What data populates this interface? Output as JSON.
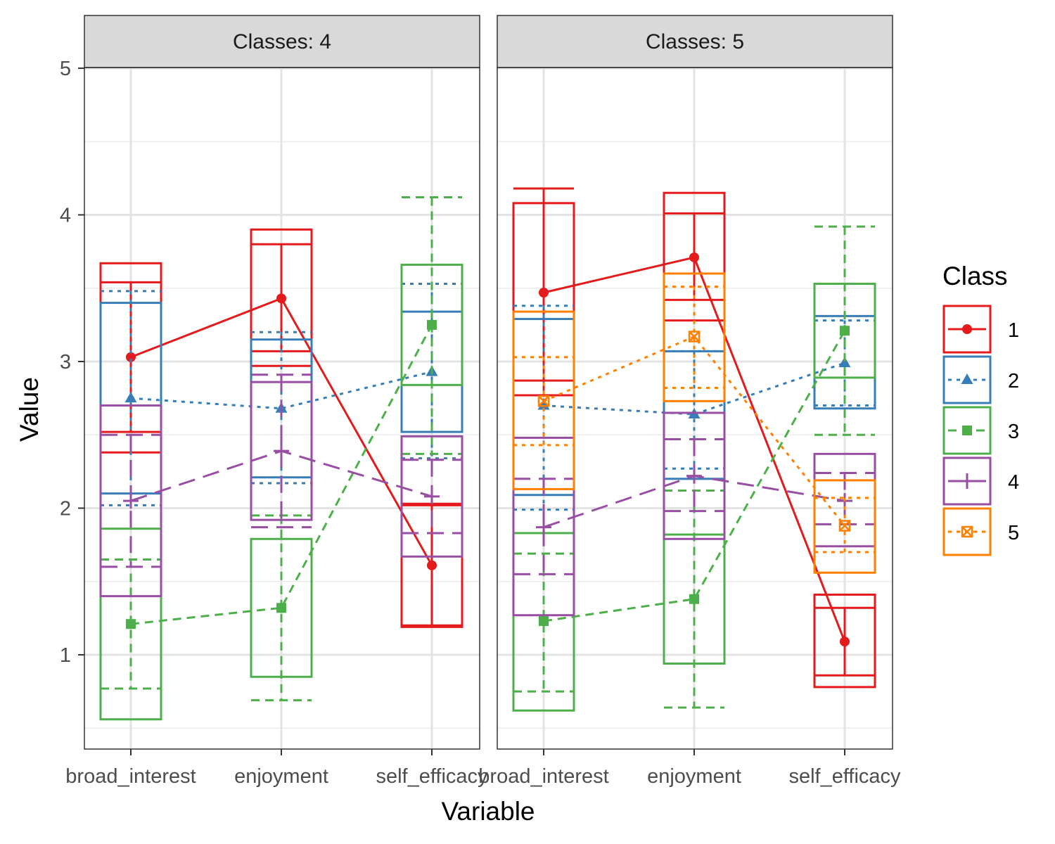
{
  "chart_data": {
    "type": "line",
    "facet_label_prefix": "Classes: ",
    "facets": [
      "4",
      "5"
    ],
    "xlabel": "Variable",
    "ylabel": "Value",
    "categories": [
      "broad_interest",
      "enjoyment",
      "self_efficacy"
    ],
    "y_ticks": [
      1,
      2,
      3,
      4,
      5
    ],
    "ylim": [
      0.43,
      5.05
    ],
    "grid": true,
    "legend": {
      "title": "Class",
      "position": "right",
      "items": [
        "1",
        "2",
        "3",
        "4",
        "5"
      ]
    },
    "classes": {
      "1": {
        "color": "#E41A1C",
        "linestyle": "solid",
        "marker": "circle"
      },
      "2": {
        "color": "#377EB8",
        "linestyle": "dotted",
        "marker": "triangle"
      },
      "3": {
        "color": "#4DAF4A",
        "linestyle": "dashed",
        "marker": "square"
      },
      "4": {
        "color": "#984EA3",
        "linestyle": "longdash",
        "marker": "plus"
      },
      "5": {
        "color": "#FF7F00",
        "linestyle": "dotted",
        "marker": "square-x"
      }
    },
    "panels": [
      {
        "facet": "4",
        "series": [
          {
            "class": "1",
            "means": [
              3.03,
              3.43,
              1.61
            ],
            "box_low": [
              2.38,
              2.97,
              1.19
            ],
            "box_high": [
              3.67,
              3.9,
              2.03
            ],
            "ci_low": [
              2.52,
              3.07,
              1.2
            ],
            "ci_high": [
              3.54,
              3.8,
              2.02
            ]
          },
          {
            "class": "2",
            "means": [
              2.75,
              2.68,
              2.93
            ],
            "box_low": [
              2.1,
              2.21,
              2.52
            ],
            "box_high": [
              3.4,
              3.15,
              3.34
            ],
            "ci_low": [
              2.02,
              2.17,
              2.34
            ],
            "ci_high": [
              3.48,
              3.2,
              3.53
            ]
          },
          {
            "class": "3",
            "means": [
              1.21,
              1.32,
              3.25
            ],
            "box_low": [
              0.56,
              0.85,
              2.84
            ],
            "box_high": [
              1.86,
              1.79,
              3.66
            ],
            "ci_low": [
              0.77,
              0.69,
              2.37
            ],
            "ci_high": [
              1.65,
              1.95,
              4.12
            ]
          },
          {
            "class": "4",
            "means": [
              2.05,
              2.39,
              2.08
            ],
            "box_low": [
              1.4,
              1.92,
              1.67
            ],
            "box_high": [
              2.7,
              2.86,
              2.49
            ],
            "ci_low": [
              1.6,
              1.87,
              1.83
            ],
            "ci_high": [
              2.5,
              2.91,
              2.33
            ]
          }
        ]
      },
      {
        "facet": "5",
        "series": [
          {
            "class": "1",
            "means": [
              3.47,
              3.71,
              1.09
            ],
            "box_low": [
              2.87,
              3.28,
              0.78
            ],
            "box_high": [
              4.08,
              4.15,
              1.41
            ],
            "ci_low": [
              2.77,
              3.42,
              0.86
            ],
            "ci_high": [
              4.18,
              4.01,
              1.32
            ]
          },
          {
            "class": "2",
            "means": [
              2.7,
              2.64,
              2.99
            ],
            "box_low": [
              2.09,
              2.2,
              2.68
            ],
            "box_high": [
              3.29,
              3.07,
              3.31
            ],
            "ci_low": [
              1.99,
              2.27,
              2.7
            ],
            "ci_high": [
              3.38,
              3.07,
              3.28
            ]
          },
          {
            "class": "3",
            "means": [
              1.23,
              1.38,
              3.21
            ],
            "box_low": [
              0.62,
              0.94,
              2.89
            ],
            "box_high": [
              1.83,
              1.82,
              3.53
            ],
            "ci_low": [
              0.75,
              0.64,
              2.5
            ],
            "ci_high": [
              1.69,
              2.12,
              3.92
            ]
          },
          {
            "class": "4",
            "means": [
              1.87,
              2.22,
              2.05
            ],
            "box_low": [
              1.27,
              1.79,
              1.74
            ],
            "box_high": [
              2.48,
              2.65,
              2.37
            ],
            "ci_low": [
              1.55,
              1.98,
              1.89
            ],
            "ci_high": [
              2.2,
              2.47,
              2.24
            ]
          },
          {
            "class": "5",
            "means": [
              2.73,
              3.17,
              1.88
            ],
            "box_low": [
              2.13,
              2.73,
              1.56
            ],
            "box_high": [
              3.34,
              3.6,
              2.19
            ],
            "ci_low": [
              2.43,
              2.82,
              1.7
            ],
            "ci_high": [
              3.03,
              3.51,
              2.07
            ]
          }
        ]
      }
    ]
  }
}
